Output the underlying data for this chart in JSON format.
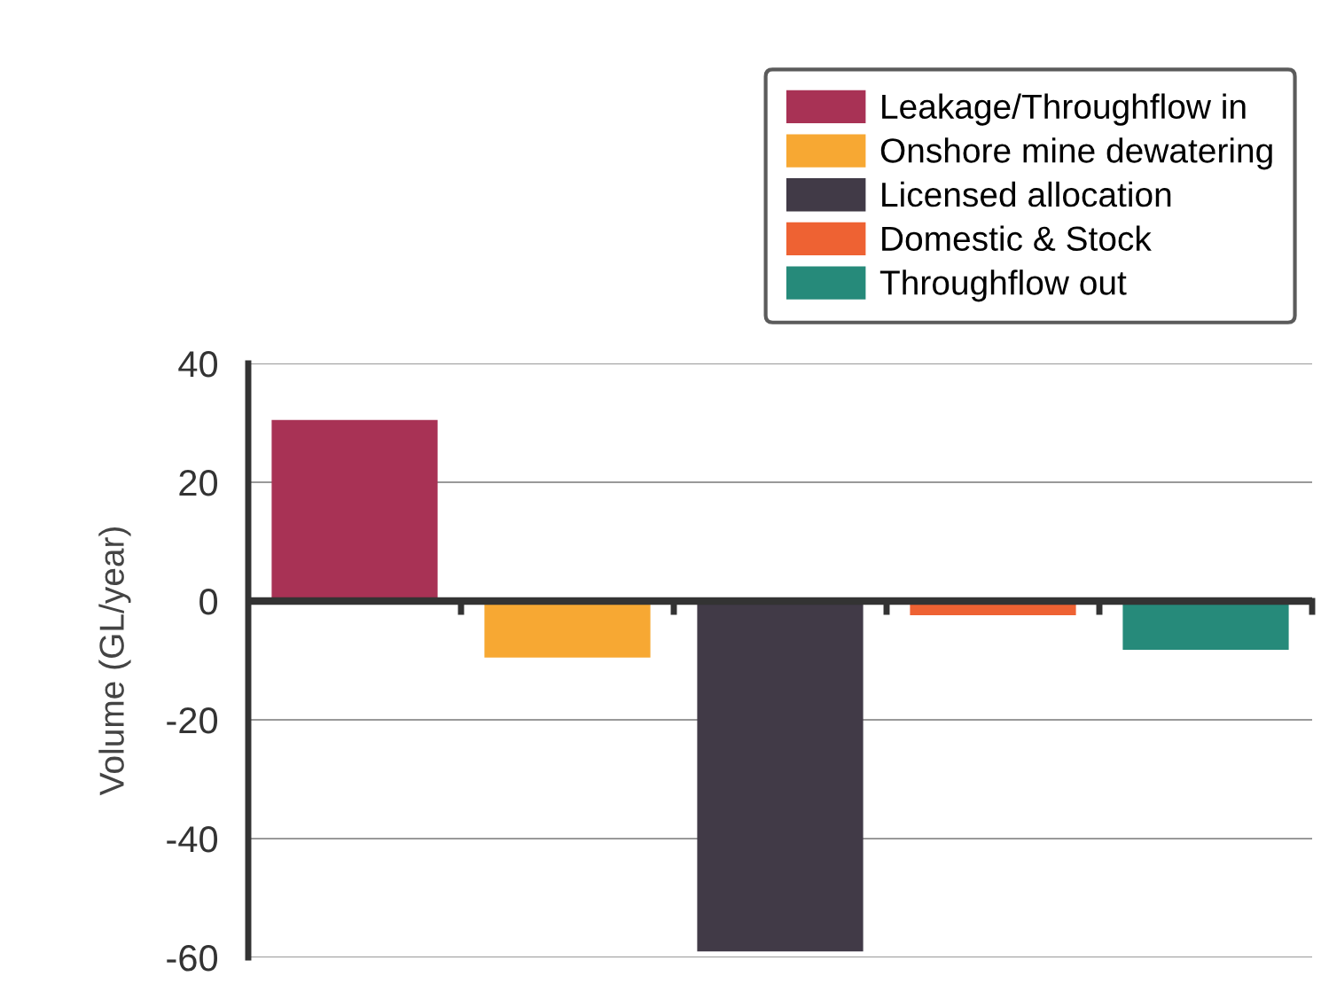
{
  "chart_data": {
    "type": "bar",
    "ylabel": "Volume (GL/year)",
    "categories": [
      null,
      null,
      null,
      null,
      null
    ],
    "series": [
      {
        "name": "Leakage/Throughflow in",
        "color": "#a83255",
        "values": [
          30.5,
          null,
          null,
          null,
          null
        ]
      },
      {
        "name": "Onshore mine dewatering",
        "color": "#f7a833",
        "values": [
          null,
          -9.5,
          null,
          null,
          null
        ]
      },
      {
        "name": "Licensed allocation",
        "color": "#413a47",
        "values": [
          null,
          null,
          -59,
          null,
          null
        ]
      },
      {
        "name": "Domestic & Stock",
        "color": "#ee6233",
        "values": [
          null,
          null,
          null,
          -2.4,
          null
        ]
      },
      {
        "name": "Throughflow out",
        "color": "#268a7a",
        "values": [
          null,
          null,
          null,
          null,
          -8.2
        ]
      }
    ],
    "ylim": [
      -60,
      40
    ],
    "yticks": [
      -60,
      -40,
      -20,
      0,
      20,
      40
    ],
    "grid": "y",
    "legend": "top right"
  }
}
